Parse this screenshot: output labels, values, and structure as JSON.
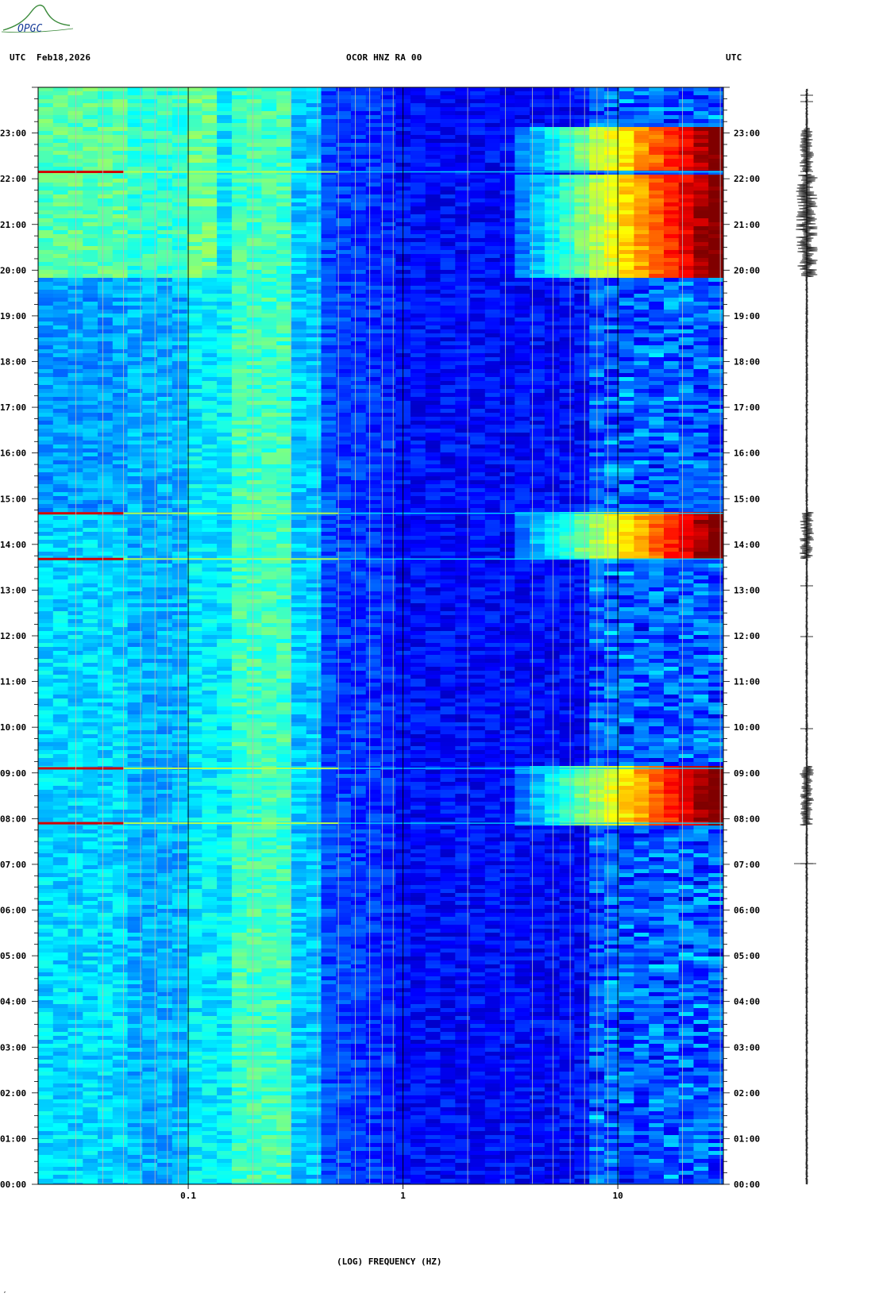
{
  "header": {
    "left_tz": "UTC",
    "date": "Feb18,2026",
    "station": "OCOR HNZ RA 00",
    "right_tz": "UTC"
  },
  "logo": {
    "text": "OPGC",
    "color": "#3a8a3a"
  },
  "footer_mark": "‚",
  "chart_data": {
    "type": "heatmap",
    "title": "OCOR HNZ RA 00",
    "xlabel": "(LOG) FREQUENCY (HZ)",
    "ylabel": "UTC",
    "x_scale": "log",
    "xlim": [
      0.02,
      31
    ],
    "x_ticks": [
      {
        "value": 0.1,
        "label": "0.1"
      },
      {
        "value": 1,
        "label": "1"
      },
      {
        "value": 10,
        "label": "10"
      }
    ],
    "ylim": [
      0,
      24
    ],
    "y_ticks": [
      "00:00",
      "01:00",
      "02:00",
      "03:00",
      "04:00",
      "05:00",
      "06:00",
      "07:00",
      "08:00",
      "09:00",
      "10:00",
      "11:00",
      "12:00",
      "13:00",
      "14:00",
      "15:00",
      "16:00",
      "17:00",
      "18:00",
      "19:00",
      "20:00",
      "21:00",
      "22:00",
      "23:00"
    ],
    "colormap": [
      "#000080",
      "#0000ff",
      "#00ffff",
      "#ffff00",
      "#ff0000",
      "#800000"
    ],
    "high_energy_intervals_utc": [
      {
        "start": 7.85,
        "end": 9.15,
        "note": "broadband high-frequency energy"
      },
      {
        "start": 13.7,
        "end": 14.7,
        "note": "broadband high-frequency energy"
      },
      {
        "start": 19.85,
        "end": 22.1,
        "note": "energy above ~20 Hz"
      },
      {
        "start": 22.15,
        "end": 23.1,
        "note": "broadband high-frequency energy"
      }
    ],
    "transient_lines_utc": [
      7.9,
      9.1,
      13.68,
      14.68,
      22.15
    ],
    "microseism_band_hz": [
      0.15,
      0.3
    ],
    "seismogram_trace": "right panel, amplitude bursts match high-energy intervals"
  }
}
